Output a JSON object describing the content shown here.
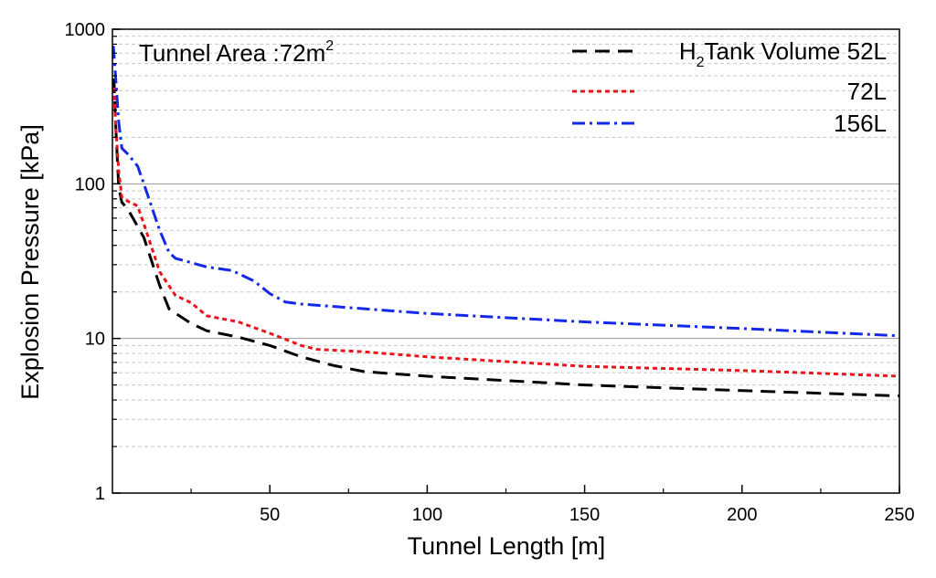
{
  "chart_data": {
    "type": "line",
    "xlabel": "Tunnel Length [m]",
    "ylabel": "Explosion Pressure [kPa]",
    "xlim": [
      0,
      250
    ],
    "ylim": [
      1,
      1000
    ],
    "yscale": "log",
    "x_ticks": [
      50,
      100,
      150,
      200,
      250
    ],
    "x_tick_labels": [
      "50",
      "100",
      "150",
      "200",
      "250"
    ],
    "y_ticks": [
      1,
      10,
      100,
      1000
    ],
    "y_tick_labels": [
      "1",
      "10",
      "100",
      "1000"
    ],
    "annotation": {
      "prefix": "Tunnel Area :72m",
      "superscript": "2"
    },
    "legend_placement": "top-right",
    "legend_header": {
      "prefix": "H",
      "subscript": "2",
      "suffix": "Tank Volume 52L"
    },
    "grid": "major and minor horizontal lines",
    "series": [
      {
        "name": "52L",
        "color": "#000000",
        "dash": "dashed",
        "x": [
          0.5,
          1,
          2,
          3,
          5,
          10,
          15,
          18,
          25,
          30,
          40,
          50,
          60,
          70,
          80,
          100,
          150,
          200,
          250
        ],
        "y": [
          480,
          250,
          95,
          76,
          68,
          45,
          22,
          15.5,
          12.5,
          11.2,
          10.2,
          9,
          7.6,
          6.7,
          6.1,
          5.7,
          5.0,
          4.6,
          4.25
        ]
      },
      {
        "name": "72L",
        "color": "#e8141c",
        "dash": "dotted",
        "x": [
          0.5,
          1,
          2,
          3,
          5,
          8,
          10,
          15,
          20,
          25,
          30,
          40,
          50,
          60,
          65,
          80,
          100,
          150,
          200,
          250
        ],
        "y": [
          420,
          250,
          120,
          82,
          77,
          72,
          55,
          27,
          19,
          17,
          14,
          12.8,
          10.8,
          9,
          8.5,
          8.2,
          7.6,
          6.6,
          6.2,
          5.7
        ]
      },
      {
        "name": "156L",
        "color": "#1428e8",
        "dash": "dash-dot",
        "x": [
          0.3,
          1,
          2,
          3,
          5,
          8,
          10,
          15,
          18,
          20,
          30,
          38,
          45,
          50,
          55,
          60,
          100,
          150,
          200,
          250
        ],
        "y": [
          780,
          500,
          250,
          170,
          155,
          130,
          100,
          50,
          36,
          33,
          29,
          27.5,
          23.5,
          19.5,
          17.2,
          16.7,
          14.5,
          12.8,
          11.6,
          10.4
        ]
      }
    ]
  }
}
